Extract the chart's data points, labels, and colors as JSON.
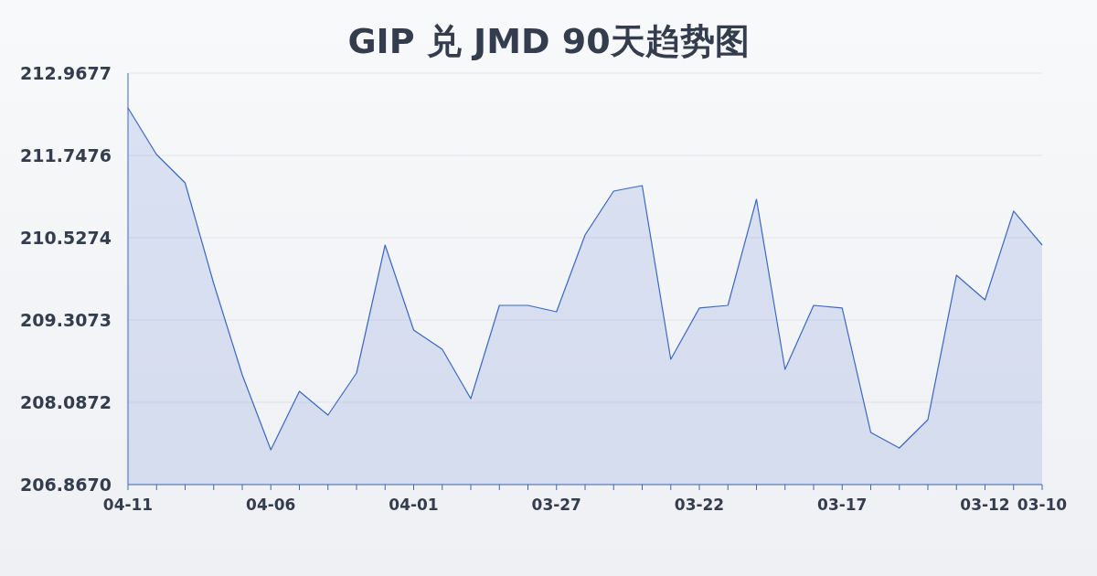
{
  "chart_data": {
    "type": "area",
    "title": "GIP 兑 JMD 90天趋势图",
    "categories": [
      "04-11",
      null,
      null,
      null,
      null,
      "04-06",
      null,
      null,
      null,
      null,
      "04-01",
      null,
      null,
      null,
      null,
      "03-27",
      null,
      null,
      null,
      null,
      "03-22",
      null,
      null,
      null,
      null,
      "03-17",
      null,
      null,
      null,
      null,
      "03-12",
      null,
      "03-10"
    ],
    "series": [
      {
        "color": "#3a67c9",
        "values": [
          212.452,
          211.761,
          211.341,
          209.85,
          208.494,
          207.382,
          208.25,
          207.897,
          208.521,
          210.419,
          209.158,
          208.873,
          208.141,
          209.524,
          209.524,
          209.429,
          210.568,
          211.219,
          211.3,
          208.724,
          209.484,
          209.524,
          211.097,
          208.575,
          209.524,
          209.484,
          207.64,
          207.409,
          207.83,
          209.972,
          209.605,
          210.921,
          210.419
        ]
      }
    ],
    "ylim": [
      206.867,
      212.9677
    ],
    "yticks": [
      {
        "value": 206.867,
        "label": "206.8670"
      },
      208.0872,
      209.3073,
      210.5274,
      211.7476,
      212.9677
    ],
    "grid": "y"
  }
}
